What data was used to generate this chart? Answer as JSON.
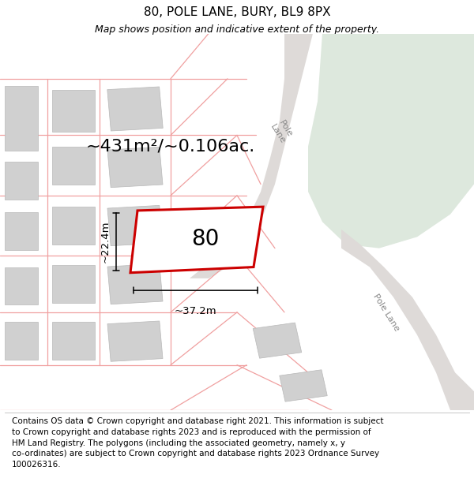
{
  "title": "80, POLE LANE, BURY, BL9 8PX",
  "subtitle": "Map shows position and indicative extent of the property.",
  "footer_lines": [
    "Contains OS data © Crown copyright and database right 2021. This information is subject",
    "to Crown copyright and database rights 2023 and is reproduced with the permission of",
    "HM Land Registry. The polygons (including the associated geometry, namely x, y",
    "co-ordinates) are subject to Crown copyright and database rights 2023 Ordnance Survey",
    "100026316."
  ],
  "area_text": "~431m²/~0.106ac.",
  "number_label": "80",
  "width_label": "~37.2m",
  "height_label": "~22.4m",
  "road_label_upper": "Pole\nLane",
  "road_label_lower": "Pole Lane",
  "map_bg": "#eeeeec",
  "green_color": "#dde8dd",
  "road_fill": "#dedad8",
  "building_fill": "#d0d0d0",
  "building_edge": "#b8b8b8",
  "prop_red": "#cc0000",
  "cadastral_red": "#f0a0a0",
  "title_fs": 11,
  "subtitle_fs": 9,
  "footer_fs": 7.5,
  "area_fs": 16,
  "num_fs": 20,
  "meas_fs": 9.5,
  "road_label_fs": 8
}
